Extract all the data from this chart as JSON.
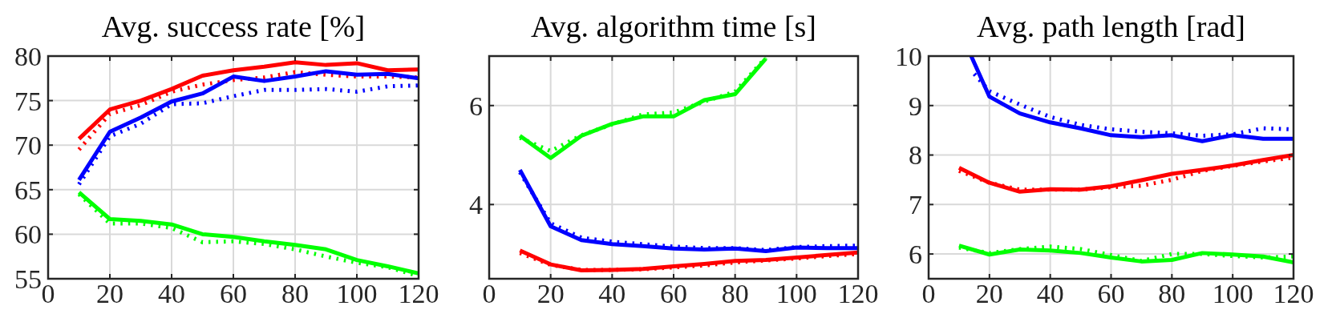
{
  "chart_data": [
    {
      "type": "line",
      "title": "Avg. success rate [%]",
      "x": [
        10,
        20,
        30,
        40,
        50,
        60,
        70,
        80,
        90,
        100,
        110,
        120
      ],
      "xlim": [
        0,
        120
      ],
      "xticks": [
        0,
        20,
        40,
        60,
        80,
        100,
        120
      ],
      "ylim": [
        55,
        80
      ],
      "yticks": [
        55,
        60,
        65,
        70,
        75,
        80
      ],
      "grid": true,
      "series": [
        {
          "color": "#ff0000",
          "line_style": "solid",
          "values": [
            70.7,
            74,
            75,
            76.3,
            77.8,
            78.4,
            78.8,
            79.3,
            79,
            79.2,
            78.4,
            78.5
          ]
        },
        {
          "color": "#ff0000",
          "line_style": "dotted",
          "values": [
            69.5,
            73.5,
            74.5,
            76,
            76.8,
            77.3,
            77.6,
            78.2,
            77.9,
            77.7,
            77.7,
            77.6
          ]
        },
        {
          "color": "#0000ff",
          "line_style": "solid",
          "values": [
            66.1,
            71.5,
            73.1,
            74.9,
            75.8,
            77.7,
            77.2,
            77.7,
            78.3,
            77.9,
            78,
            77.5
          ]
        },
        {
          "color": "#0000ff",
          "line_style": "dotted",
          "values": [
            65.6,
            71,
            72.4,
            74.6,
            74.7,
            75.5,
            76.2,
            76.2,
            76.3,
            76,
            76.6,
            76.7
          ]
        },
        {
          "color": "#00ff00",
          "line_style": "solid",
          "values": [
            64.7,
            61.7,
            61.5,
            61.1,
            60,
            59.7,
            59.2,
            58.8,
            58.3,
            57.1,
            56.4,
            55.6
          ]
        },
        {
          "color": "#00ff00",
          "line_style": "dotted",
          "values": [
            64.5,
            61.2,
            61.2,
            60.7,
            59.1,
            59.2,
            58.9,
            58.3,
            57.5,
            56.8,
            56.3,
            55.3
          ]
        }
      ]
    },
    {
      "type": "line",
      "title": "Avg. algorithm time [s]",
      "x": [
        10,
        20,
        30,
        40,
        50,
        60,
        70,
        80,
        90,
        100,
        110,
        120
      ],
      "xlim": [
        0,
        120
      ],
      "xticks": [
        0,
        20,
        40,
        60,
        80,
        100,
        120
      ],
      "ylim": [
        2.5,
        7
      ],
      "yticks": [
        4,
        6
      ],
      "grid": true,
      "series": [
        {
          "color": "#00ff00",
          "line_style": "solid",
          "values": [
            5.39,
            4.94,
            5.39,
            5.63,
            5.78,
            5.78,
            6.11,
            6.23,
            6.95,
            null,
            null,
            null
          ]
        },
        {
          "color": "#00ff00",
          "line_style": "dotted",
          "values": [
            5.35,
            5.08,
            5.4,
            5.62,
            5.82,
            5.86,
            6.08,
            6.28,
            6.97,
            null,
            null,
            null
          ]
        },
        {
          "color": "#0000ff",
          "line_style": "solid",
          "values": [
            4.7,
            3.56,
            3.28,
            3.2,
            3.16,
            3.11,
            3.09,
            3.11,
            3.06,
            3.13,
            3.12,
            3.12
          ]
        },
        {
          "color": "#0000ff",
          "line_style": "dotted",
          "values": [
            4.65,
            3.62,
            3.33,
            3.25,
            3.2,
            3.15,
            3.12,
            3.12,
            3.08,
            3.14,
            3.16,
            3.17
          ]
        },
        {
          "color": "#ff0000",
          "line_style": "solid",
          "values": [
            3.07,
            2.79,
            2.67,
            2.68,
            2.7,
            2.75,
            2.8,
            2.86,
            2.88,
            2.93,
            2.98,
            3.03
          ]
        },
        {
          "color": "#ff0000",
          "line_style": "dotted",
          "values": [
            3.02,
            2.78,
            2.68,
            2.68,
            2.69,
            2.73,
            2.77,
            2.83,
            2.87,
            2.91,
            2.96,
            3.0
          ]
        }
      ]
    },
    {
      "type": "line",
      "title": "Avg. path length [rad]",
      "x": [
        10,
        20,
        30,
        40,
        50,
        60,
        70,
        80,
        90,
        100,
        110,
        120
      ],
      "xlim": [
        0,
        120
      ],
      "xticks": [
        0,
        20,
        40,
        60,
        80,
        100,
        120
      ],
      "ylim": [
        5.5,
        10
      ],
      "yticks": [
        6,
        7,
        8,
        9,
        10
      ],
      "grid": true,
      "series": [
        {
          "color": "#0000ff",
          "line_style": "solid",
          "x": [
            14,
            20,
            30,
            40,
            50,
            60,
            70,
            80,
            90,
            100,
            110,
            120
          ],
          "values": [
            10,
            9.18,
            8.84,
            8.66,
            8.54,
            8.4,
            8.36,
            8.4,
            8.28,
            8.4,
            8.33,
            8.33
          ]
        },
        {
          "color": "#0000ff",
          "line_style": "dotted",
          "x": [
            15,
            20,
            30,
            40,
            50,
            60,
            70,
            80,
            90,
            100,
            110,
            120
          ],
          "values": [
            9.64,
            9.29,
            9.02,
            8.77,
            8.61,
            8.52,
            8.47,
            8.44,
            8.39,
            8.42,
            8.54,
            8.52
          ]
        },
        {
          "color": "#ff0000",
          "line_style": "solid",
          "values": [
            7.74,
            7.44,
            7.26,
            7.31,
            7.3,
            7.37,
            7.49,
            7.62,
            7.7,
            7.79,
            7.9,
            8.0
          ]
        },
        {
          "color": "#ff0000",
          "line_style": "dotted",
          "values": [
            7.68,
            7.44,
            7.3,
            7.3,
            7.3,
            7.35,
            7.38,
            7.5,
            7.68,
            7.78,
            7.87,
            7.95
          ]
        },
        {
          "color": "#00ff00",
          "line_style": "solid",
          "values": [
            6.17,
            5.99,
            6.09,
            6.07,
            6.02,
            5.93,
            5.85,
            5.88,
            6.02,
            5.99,
            5.95,
            5.83
          ]
        },
        {
          "color": "#00ff00",
          "line_style": "dotted",
          "values": [
            6.13,
            6.02,
            6.1,
            6.15,
            6.1,
            5.98,
            5.86,
            6.0,
            6.0,
            5.96,
            5.93,
            5.95
          ]
        }
      ]
    }
  ]
}
